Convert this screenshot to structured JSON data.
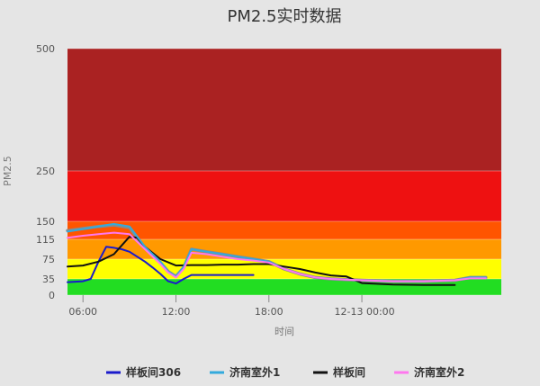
{
  "chart_data": {
    "type": "line",
    "title": "PM2.5实时数据",
    "xlabel": "时间",
    "ylabel": "PM2.5",
    "x_range": [
      "12-12 05:00",
      "12-13 09:00"
    ],
    "x_ticks": [
      "06:00",
      "12:00",
      "18:00",
      "12-13 00:00"
    ],
    "y_ticks": [
      0,
      35,
      75,
      115,
      150,
      250,
      500
    ],
    "y_scale": "piecewise",
    "bands": [
      {
        "from": 0,
        "to": 35,
        "color": "#22dd22"
      },
      {
        "from": 35,
        "to": 75,
        "color": "#ffff00"
      },
      {
        "from": 75,
        "to": 115,
        "color": "#ff9900"
      },
      {
        "from": 115,
        "to": 150,
        "color": "#ff5500"
      },
      {
        "from": 150,
        "to": 250,
        "color": "#ee1111"
      },
      {
        "from": 250,
        "to": 500,
        "color": "#aa2222"
      }
    ],
    "series": [
      {
        "name": "样板间306",
        "color": "#1a1acc",
        "width": 2,
        "x": [
          "12-12 05:00",
          "12-12 06:00",
          "12-12 06:30",
          "12-12 07:00",
          "12-12 07:30",
          "12-12 08:00",
          "12-12 08:30",
          "12-12 09:00",
          "12-12 09:30",
          "12-12 10:00",
          "12-12 10:30",
          "12-12 11:00",
          "12-12 11:30",
          "12-12 12:00",
          "12-12 12:30",
          "12-12 13:00",
          "12-12 14:00",
          "12-12 15:00",
          "12-12 16:00",
          "12-12 17:00"
        ],
        "values": [
          28,
          30,
          35,
          70,
          100,
          98,
          95,
          90,
          80,
          70,
          58,
          45,
          30,
          25,
          35,
          43,
          43,
          43,
          43,
          43
        ]
      },
      {
        "name": "济南室外1",
        "color": "#33aadd",
        "width": 2,
        "x": [
          "12-12 05:00",
          "12-12 06:00",
          "12-12 07:00",
          "12-12 08:00",
          "12-12 09:00",
          "12-12 10:00",
          "12-12 11:00",
          "12-12 11:30",
          "12-12 12:00",
          "12-12 12:30",
          "12-12 13:00",
          "12-12 14:00",
          "12-12 15:00",
          "12-12 16:00",
          "12-12 17:00",
          "12-12 18:00",
          "12-12 19:00",
          "12-12 20:00",
          "12-12 21:00",
          "12-12 22:00",
          "12-13 00:00",
          "12-13 02:00",
          "12-13 04:00",
          "12-13 06:00",
          "12-13 07:00",
          "12-13 08:00"
        ],
        "values": [
          130,
          135,
          140,
          145,
          140,
          100,
          70,
          50,
          40,
          60,
          95,
          90,
          85,
          80,
          75,
          70,
          55,
          45,
          38,
          35,
          32,
          30,
          30,
          32,
          38,
          38
        ]
      },
      {
        "name": "样板间",
        "color": "#111111",
        "width": 2,
        "x": [
          "12-12 05:00",
          "12-12 06:00",
          "12-12 07:00",
          "12-12 08:00",
          "12-12 09:00",
          "12-12 09:30",
          "12-12 10:00",
          "12-12 11:00",
          "12-12 12:00",
          "12-12 13:00",
          "12-12 14:00",
          "12-12 15:00",
          "12-12 16:00",
          "12-12 17:00",
          "12-12 18:00",
          "12-12 19:00",
          "12-12 20:00",
          "12-12 21:00",
          "12-12 22:00",
          "12-12 23:00",
          "12-13 00:00",
          "12-13 02:00",
          "12-13 04:00",
          "12-13 06:00"
        ],
        "values": [
          60,
          62,
          70,
          85,
          120,
          118,
          100,
          75,
          62,
          63,
          63,
          64,
          64,
          65,
          65,
          60,
          55,
          48,
          42,
          40,
          26,
          23,
          22,
          22
        ]
      },
      {
        "name": "济南室外2",
        "color": "#ff77ee",
        "width": 2,
        "x": [
          "12-12 05:00",
          "12-12 06:00",
          "12-12 07:00",
          "12-12 08:00",
          "12-12 09:00",
          "12-12 10:00",
          "12-12 11:00",
          "12-12 11:30",
          "12-12 12:00",
          "12-12 12:30",
          "12-12 13:00",
          "12-12 14:00",
          "12-12 15:00",
          "12-12 16:00",
          "12-12 17:00",
          "12-12 18:00",
          "12-12 19:00",
          "12-12 20:00",
          "12-12 21:00",
          "12-12 22:00",
          "12-13 00:00",
          "12-13 02:00",
          "12-13 04:00",
          "12-13 06:00",
          "12-13 07:00",
          "12-13 08:00"
        ],
        "values": [
          118,
          122,
          125,
          128,
          125,
          95,
          65,
          48,
          38,
          55,
          88,
          85,
          80,
          75,
          72,
          68,
          55,
          45,
          38,
          35,
          32,
          30,
          30,
          32,
          36,
          36
        ]
      },
      {
        "name": "",
        "color": "#8a8a8a",
        "width": 3.5,
        "x": [
          "12-12 05:00",
          "12-12 06:00",
          "12-12 07:00",
          "12-12 08:00",
          "12-12 09:00",
          "12-12 10:00",
          "12-12 11:00",
          "12-12 11:30",
          "12-12 12:00",
          "12-12 12:30",
          "12-12 13:00",
          "12-12 14:00",
          "12-12 15:00",
          "12-12 16:00",
          "12-12 17:00",
          "12-12 18:00",
          "12-12 19:00",
          "12-12 20:00",
          "12-12 21:00",
          "12-12 22:00",
          "12-13 00:00",
          "12-13 02:00",
          "12-13 04:00",
          "12-13 06:00",
          "12-13 07:00",
          "12-13 08:00"
        ],
        "values": [
          132,
          136,
          140,
          143,
          138,
          98,
          68,
          50,
          40,
          58,
          95,
          90,
          85,
          80,
          75,
          70,
          55,
          45,
          38,
          35,
          32,
          30,
          30,
          32,
          38,
          38
        ]
      }
    ],
    "legend": [
      "样板间306",
      "济南室外1",
      "样板间",
      "济南室外2"
    ],
    "legend_position": "bottom",
    "grid": true
  }
}
